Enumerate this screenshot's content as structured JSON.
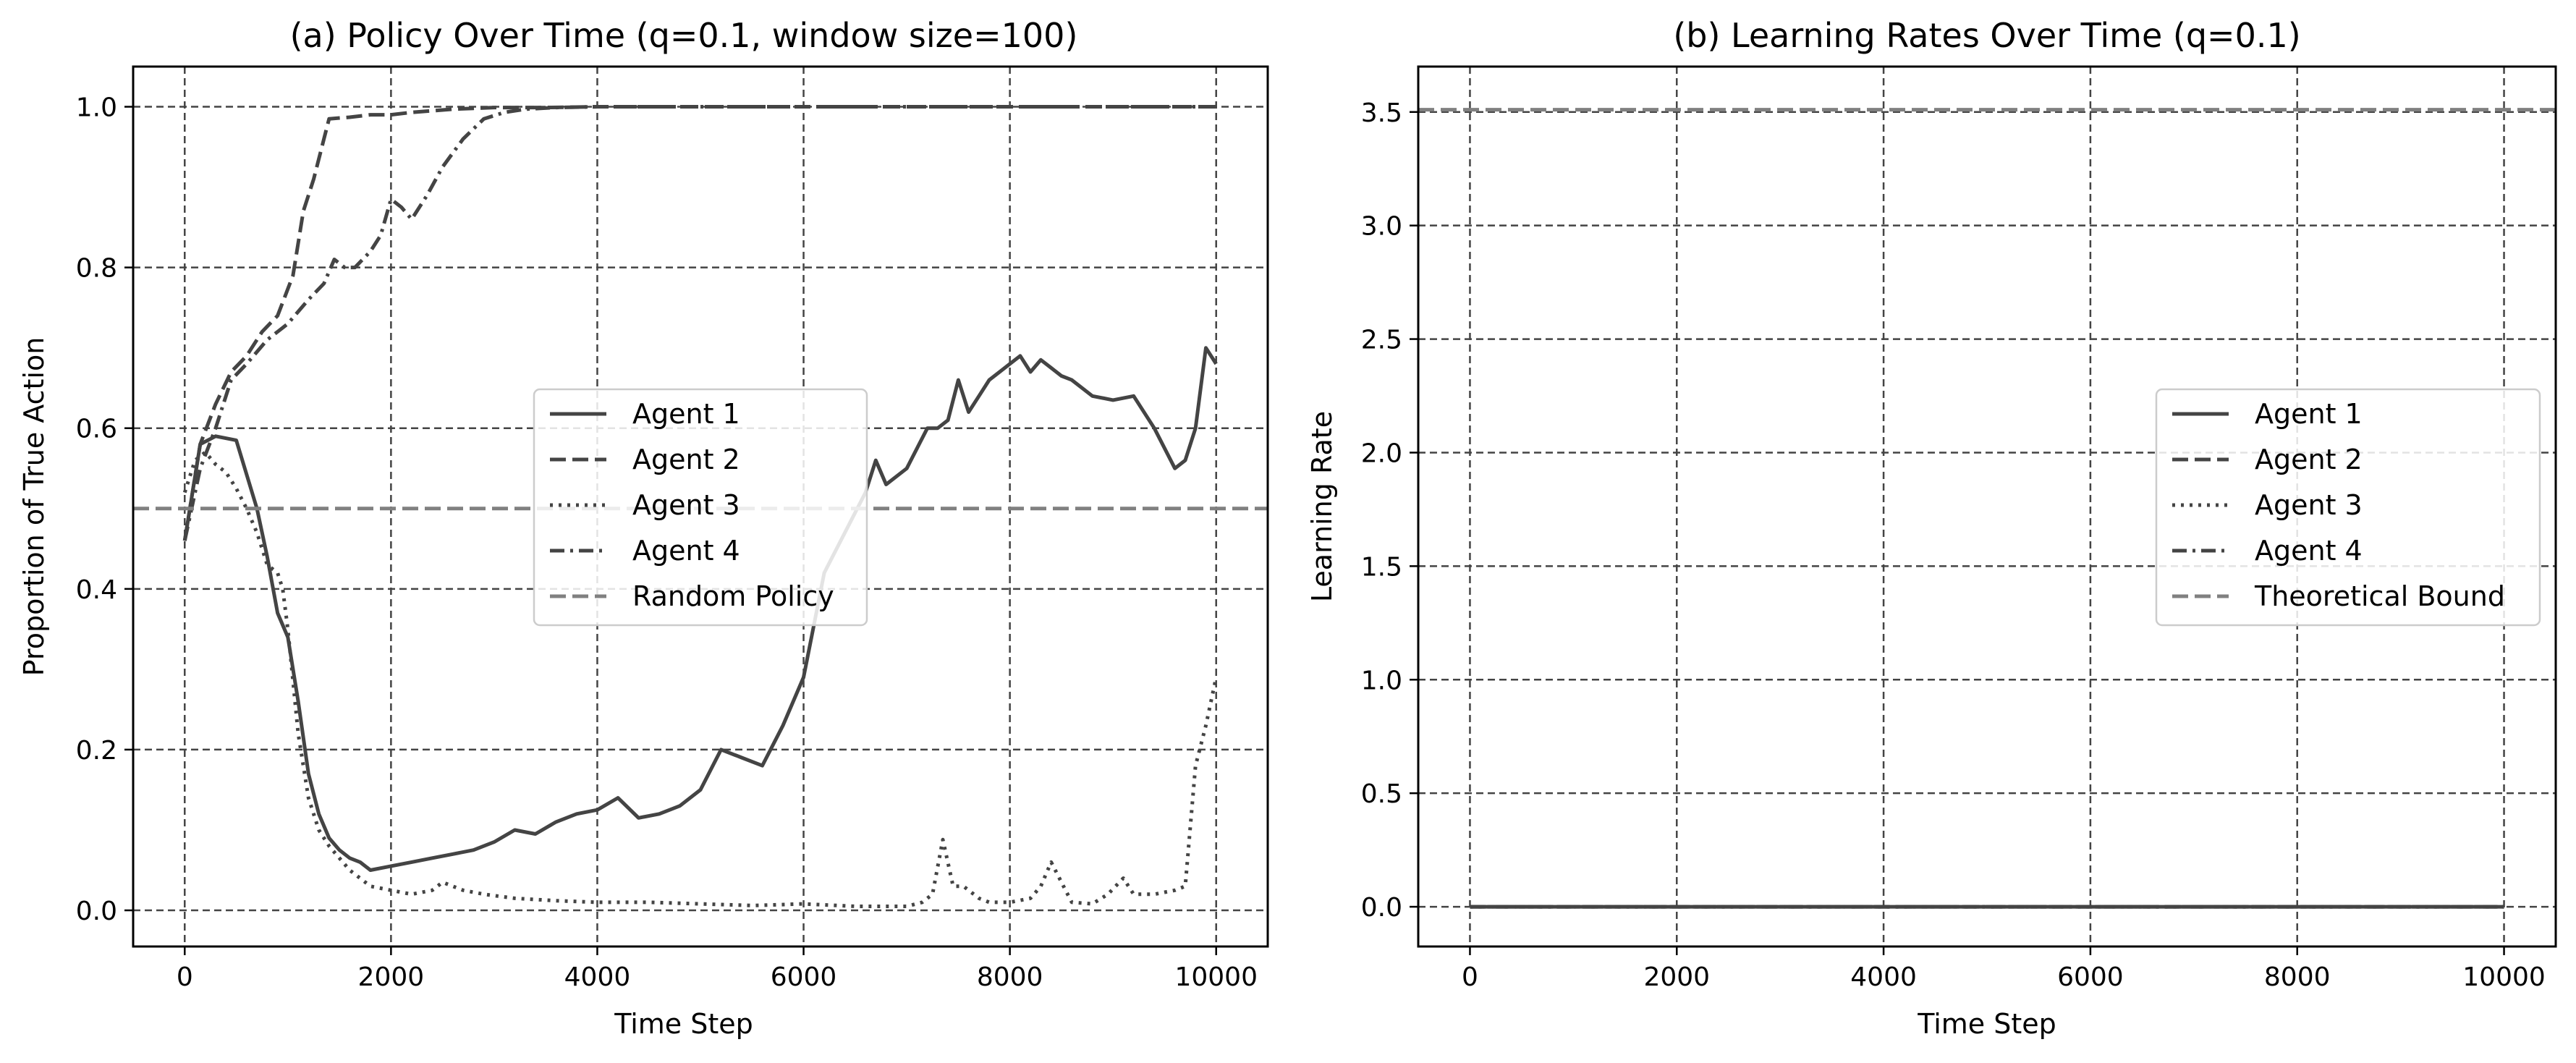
{
  "figure": {
    "background": "#ffffff",
    "line_color": "#444444",
    "reference_color": "#808080",
    "grid_color": "#444444"
  },
  "chart_data": [
    {
      "type": "line",
      "title": "(a) Policy Over Time (q=0.1, window size=100)",
      "xlabel": "Time Step",
      "ylabel": "Proportion of True Action",
      "xlim": [
        -500,
        10500
      ],
      "ylim": [
        -0.045,
        1.05
      ],
      "xticks": [
        0,
        2000,
        4000,
        6000,
        8000,
        10000
      ],
      "xtick_labels": [
        "0",
        "2000",
        "4000",
        "6000",
        "8000",
        "10000"
      ],
      "yticks": [
        0.0,
        0.2,
        0.4,
        0.6,
        0.8,
        1.0
      ],
      "ytick_labels": [
        "0.0",
        "0.2",
        "0.4",
        "0.6",
        "0.8",
        "1.0"
      ],
      "grid": true,
      "legend_position": "center-right",
      "series": [
        {
          "name": "Agent 1",
          "style": "solid",
          "x": [
            0,
            150,
            300,
            500,
            700,
            800,
            900,
            1000,
            1100,
            1200,
            1300,
            1400,
            1500,
            1600,
            1700,
            1800,
            2000,
            2200,
            2400,
            2600,
            2800,
            3000,
            3200,
            3400,
            3600,
            3800,
            4000,
            4200,
            4400,
            4600,
            4800,
            5000,
            5200,
            5400,
            5600,
            5800,
            6000,
            6200,
            6400,
            6600,
            6700,
            6800,
            7000,
            7200,
            7300,
            7400,
            7500,
            7600,
            7700,
            7800,
            7900,
            8000,
            8100,
            8200,
            8300,
            8400,
            8500,
            8600,
            8800,
            9000,
            9200,
            9400,
            9600,
            9700,
            9800,
            9900,
            10000
          ],
          "values": [
            0.46,
            0.58,
            0.59,
            0.585,
            0.5,
            0.44,
            0.37,
            0.34,
            0.26,
            0.17,
            0.12,
            0.09,
            0.075,
            0.065,
            0.06,
            0.05,
            0.055,
            0.06,
            0.065,
            0.07,
            0.075,
            0.085,
            0.1,
            0.095,
            0.11,
            0.12,
            0.125,
            0.14,
            0.115,
            0.12,
            0.13,
            0.15,
            0.2,
            0.19,
            0.18,
            0.23,
            0.29,
            0.42,
            0.47,
            0.52,
            0.56,
            0.53,
            0.55,
            0.6,
            0.6,
            0.61,
            0.66,
            0.62,
            0.64,
            0.66,
            0.67,
            0.68,
            0.69,
            0.67,
            0.685,
            0.675,
            0.665,
            0.66,
            0.64,
            0.635,
            0.64,
            0.6,
            0.55,
            0.56,
            0.6,
            0.7,
            0.68
          ]
        },
        {
          "name": "Agent 2",
          "style": "dashed",
          "x": [
            0,
            150,
            300,
            450,
            600,
            750,
            900,
            1050,
            1150,
            1250,
            1350,
            1400,
            1600,
            1800,
            2000,
            2200,
            2400,
            2600,
            2800,
            3000,
            3500,
            4000,
            5000,
            6000,
            7000,
            8000,
            9000,
            10000
          ],
          "values": [
            0.46,
            0.58,
            0.63,
            0.67,
            0.69,
            0.72,
            0.74,
            0.79,
            0.87,
            0.91,
            0.96,
            0.985,
            0.987,
            0.99,
            0.99,
            0.993,
            0.995,
            0.997,
            0.998,
            0.999,
            0.999,
            1.0,
            1.0,
            1.0,
            1.0,
            1.0,
            1.0,
            1.0
          ]
        },
        {
          "name": "Agent 3",
          "style": "dotted",
          "x": [
            0,
            100,
            200,
            300,
            400,
            500,
            600,
            700,
            800,
            850,
            900,
            950,
            1000,
            1100,
            1200,
            1300,
            1400,
            1600,
            1800,
            2000,
            2200,
            2400,
            2500,
            2700,
            2900,
            3200,
            3600,
            4000,
            4500,
            5000,
            5500,
            6000,
            6500,
            7000,
            7150,
            7250,
            7350,
            7450,
            7550,
            7700,
            7800,
            8000,
            8200,
            8300,
            8400,
            8500,
            8600,
            8800,
            8950,
            9100,
            9200,
            9400,
            9600,
            9700,
            9800,
            9900,
            10000
          ],
          "values": [
            0.52,
            0.56,
            0.57,
            0.555,
            0.545,
            0.525,
            0.5,
            0.47,
            0.43,
            0.425,
            0.42,
            0.4,
            0.35,
            0.22,
            0.14,
            0.1,
            0.08,
            0.05,
            0.03,
            0.025,
            0.02,
            0.025,
            0.035,
            0.025,
            0.02,
            0.015,
            0.012,
            0.01,
            0.01,
            0.008,
            0.006,
            0.008,
            0.005,
            0.005,
            0.01,
            0.02,
            0.088,
            0.03,
            0.03,
            0.015,
            0.01,
            0.01,
            0.015,
            0.03,
            0.06,
            0.035,
            0.01,
            0.008,
            0.02,
            0.04,
            0.02,
            0.02,
            0.025,
            0.03,
            0.18,
            0.23,
            0.29
          ]
        },
        {
          "name": "Agent 4",
          "style": "dashdot",
          "x": [
            0,
            150,
            300,
            450,
            600,
            800,
            1000,
            1200,
            1350,
            1450,
            1550,
            1650,
            1800,
            1900,
            2000,
            2100,
            2200,
            2350,
            2500,
            2700,
            2900,
            3100,
            3300,
            3600,
            4000,
            5000,
            6000,
            7000,
            8000,
            9000,
            10000
          ],
          "values": [
            0.46,
            0.55,
            0.6,
            0.66,
            0.68,
            0.71,
            0.73,
            0.76,
            0.78,
            0.81,
            0.8,
            0.8,
            0.82,
            0.84,
            0.885,
            0.875,
            0.86,
            0.89,
            0.925,
            0.96,
            0.985,
            0.993,
            0.997,
            0.999,
            1.0,
            1.0,
            1.0,
            1.0,
            1.0,
            1.0,
            1.0
          ]
        },
        {
          "name": "Random Policy",
          "style": "dashed",
          "role": "reference",
          "y": 0.5
        }
      ]
    },
    {
      "type": "line",
      "title": "(b) Learning Rates Over Time (q=0.1)",
      "xlabel": "Time Step",
      "ylabel": "Learning Rate",
      "xlim": [
        -500,
        10500
      ],
      "ylim": [
        -0.175,
        3.7
      ],
      "xticks": [
        0,
        2000,
        4000,
        6000,
        8000,
        10000
      ],
      "xtick_labels": [
        "0",
        "2000",
        "4000",
        "6000",
        "8000",
        "10000"
      ],
      "yticks": [
        0.0,
        0.5,
        1.0,
        1.5,
        2.0,
        2.5,
        3.0,
        3.5
      ],
      "ytick_labels": [
        "0.0",
        "0.5",
        "1.0",
        "1.5",
        "2.0",
        "2.5",
        "3.0",
        "3.5"
      ],
      "grid": true,
      "legend_position": "center-right",
      "series": [
        {
          "name": "Agent 1",
          "style": "solid",
          "x": [
            0,
            10000
          ],
          "values": [
            0.0,
            0.0
          ]
        },
        {
          "name": "Agent 2",
          "style": "dashed",
          "x": [
            0,
            10000
          ],
          "values": [
            0.0,
            0.0
          ]
        },
        {
          "name": "Agent 3",
          "style": "dotted",
          "x": [
            0,
            10000
          ],
          "values": [
            0.0,
            0.0
          ]
        },
        {
          "name": "Agent 4",
          "style": "dashdot",
          "x": [
            0,
            10000
          ],
          "values": [
            0.0,
            0.0
          ]
        },
        {
          "name": "Theoretical Bound",
          "style": "dashed",
          "role": "reference",
          "y": 3.51
        }
      ]
    }
  ]
}
